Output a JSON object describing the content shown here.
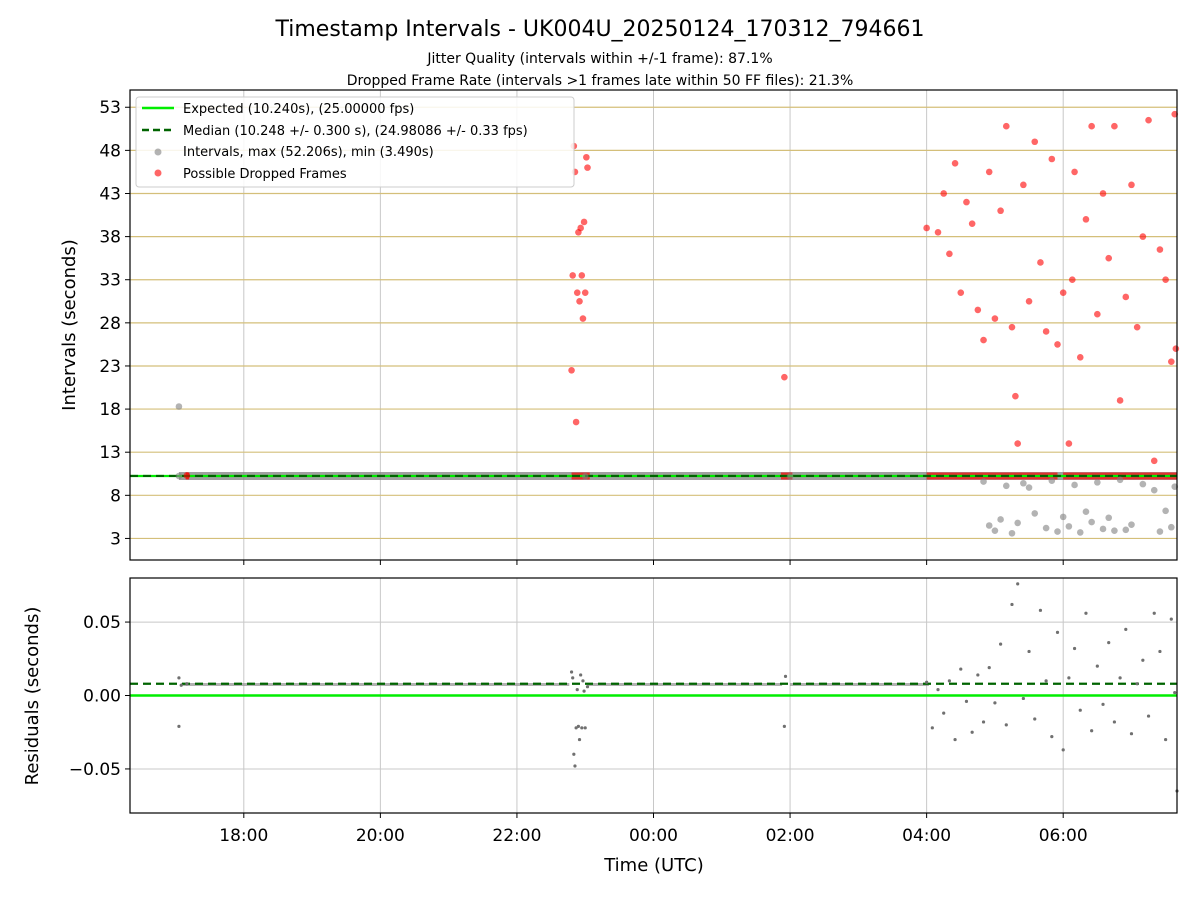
{
  "chart_data": [
    {
      "type": "scatter",
      "title": "Timestamp Intervals - UK004U_20250124_170312_794661",
      "subtitle_lines": [
        "Jitter Quality (intervals within +/-1 frame): 87.1%",
        "Dropped Frame Rate (intervals >1 frames late within 50 FF files): 21.3%"
      ],
      "ylabel": "Intervals (seconds)",
      "xlim": [
        "16:20",
        "07:40"
      ],
      "ylim": [
        0.5,
        55
      ],
      "y_ticks": [
        3,
        8,
        13,
        18,
        23,
        28,
        33,
        38,
        43,
        48,
        53
      ],
      "x_ticks": [
        "18:00",
        "20:00",
        "22:00",
        "00:00",
        "02:00",
        "04:00",
        "06:00"
      ],
      "grid": true,
      "legend_position": "top-left",
      "legend": [
        "Expected (10.240s), (25.00000 fps)",
        "Median (10.248 +/- 0.300 s), (24.98086 +/- 0.33 fps)",
        "Intervals, max (52.206s), min (3.490s)",
        "Possible Dropped Frames"
      ],
      "expected_value": 10.24,
      "median_value": 10.248,
      "series": [
        {
          "name": "Intervals, max (52.206s), min (3.490s)",
          "color": "#808080",
          "points": [
            [
              "17:03",
              18.3
            ],
            [
              "17:03",
              10.24
            ],
            [
              "23:00",
              10.2
            ],
            [
              "02:00",
              10.2
            ],
            [
              "04:55",
              4.5
            ],
            [
              "05:00",
              3.9
            ],
            [
              "05:05",
              5.2
            ],
            [
              "05:10",
              9.1
            ],
            [
              "05:15",
              3.6
            ],
            [
              "05:20",
              4.8
            ],
            [
              "05:25",
              9.4
            ],
            [
              "05:35",
              5.9
            ],
            [
              "05:45",
              4.2
            ],
            [
              "05:50",
              9.7
            ],
            [
              "05:55",
              3.8
            ],
            [
              "06:00",
              5.5
            ],
            [
              "06:05",
              4.4
            ],
            [
              "06:10",
              9.2
            ],
            [
              "06:15",
              3.7
            ],
            [
              "06:20",
              6.1
            ],
            [
              "06:25",
              4.9
            ],
            [
              "06:30",
              9.5
            ],
            [
              "06:35",
              4.1
            ],
            [
              "06:40",
              5.4
            ],
            [
              "06:45",
              3.9
            ],
            [
              "06:50",
              9.8
            ],
            [
              "07:00",
              4.6
            ],
            [
              "07:10",
              9.3
            ],
            [
              "07:20",
              8.6
            ],
            [
              "07:25",
              3.8
            ],
            [
              "07:30",
              6.2
            ],
            [
              "07:35",
              4.3
            ],
            [
              "07:38",
              9.0
            ],
            [
              "04:50",
              9.6
            ],
            [
              "05:30",
              8.9
            ],
            [
              "06:55",
              4.0
            ]
          ]
        },
        {
          "name": "Possible Dropped Frames",
          "color": "#ff0000",
          "points": [
            [
              "17:10",
              10.3
            ],
            [
              "22:48",
              22.5
            ],
            [
              "22:49",
              33.5
            ],
            [
              "22:50",
              48.5
            ],
            [
              "22:51",
              45.5
            ],
            [
              "22:52",
              16.5
            ],
            [
              "22:53",
              31.5
            ],
            [
              "22:54",
              38.5
            ],
            [
              "22:55",
              30.5
            ],
            [
              "22:56",
              39.0
            ],
            [
              "22:57",
              33.5
            ],
            [
              "22:58",
              28.5
            ],
            [
              "22:59",
              39.7
            ],
            [
              "23:00",
              31.5
            ],
            [
              "23:01",
              47.2
            ],
            [
              "23:02",
              46.0
            ],
            [
              "01:55",
              21.7
            ],
            [
              "04:00",
              39.0
            ],
            [
              "04:10",
              38.5
            ],
            [
              "04:15",
              43.0
            ],
            [
              "04:20",
              36.0
            ],
            [
              "04:25",
              46.5
            ],
            [
              "04:30",
              31.5
            ],
            [
              "04:35",
              42.0
            ],
            [
              "04:40",
              39.5
            ],
            [
              "04:45",
              29.5
            ],
            [
              "04:50",
              26.0
            ],
            [
              "04:55",
              45.5
            ],
            [
              "05:00",
              28.5
            ],
            [
              "05:05",
              41.0
            ],
            [
              "05:10",
              50.8
            ],
            [
              "05:15",
              27.5
            ],
            [
              "05:18",
              19.5
            ],
            [
              "05:20",
              14.0
            ],
            [
              "05:25",
              44.0
            ],
            [
              "05:30",
              30.5
            ],
            [
              "05:35",
              49.0
            ],
            [
              "05:40",
              35.0
            ],
            [
              "05:45",
              27.0
            ],
            [
              "05:50",
              47.0
            ],
            [
              "05:55",
              25.5
            ],
            [
              "06:00",
              31.5
            ],
            [
              "06:05",
              14.0
            ],
            [
              "06:08",
              33.0
            ],
            [
              "06:10",
              45.5
            ],
            [
              "06:15",
              24.0
            ],
            [
              "06:20",
              40.0
            ],
            [
              "06:25",
              50.8
            ],
            [
              "06:30",
              29.0
            ],
            [
              "06:35",
              43.0
            ],
            [
              "06:40",
              35.5
            ],
            [
              "06:45",
              50.8
            ],
            [
              "06:50",
              19.0
            ],
            [
              "06:55",
              31.0
            ],
            [
              "07:00",
              44.0
            ],
            [
              "07:05",
              27.5
            ],
            [
              "07:10",
              38.0
            ],
            [
              "07:15",
              51.5
            ],
            [
              "07:20",
              12.0
            ],
            [
              "07:25",
              36.5
            ],
            [
              "07:30",
              33.0
            ],
            [
              "07:35",
              23.5
            ],
            [
              "07:38",
              52.2
            ],
            [
              "07:39",
              25.0
            ]
          ]
        }
      ]
    },
    {
      "type": "scatter",
      "xlabel": "Time (UTC)",
      "ylabel": "Residuals (seconds)",
      "xlim": [
        "16:20",
        "07:40"
      ],
      "ylim": [
        -0.08,
        0.08
      ],
      "y_ticks": [
        -0.05,
        0.0,
        0.05
      ],
      "y_tick_labels": [
        "−0.05",
        "0.00",
        "0.05"
      ],
      "x_ticks": [
        "18:00",
        "20:00",
        "22:00",
        "00:00",
        "02:00",
        "04:00",
        "06:00"
      ],
      "grid": true,
      "expected_value": 0.0,
      "median_value": 0.008,
      "series": [
        {
          "name": "Residuals",
          "color": "#707070",
          "points": [
            [
              "17:03",
              0.012
            ],
            [
              "17:03",
              -0.021
            ],
            [
              "17:05",
              0.007
            ],
            [
              "17:10",
              0.008
            ],
            [
              "22:48",
              0.016
            ],
            [
              "22:49",
              0.012
            ],
            [
              "22:50",
              -0.04
            ],
            [
              "22:51",
              -0.048
            ],
            [
              "22:52",
              -0.022
            ],
            [
              "22:53",
              0.004
            ],
            [
              "22:54",
              -0.021
            ],
            [
              "22:55",
              -0.03
            ],
            [
              "22:56",
              0.014
            ],
            [
              "22:57",
              -0.022
            ],
            [
              "22:58",
              0.01
            ],
            [
              "22:59",
              0.003
            ],
            [
              "23:00",
              -0.022
            ],
            [
              "23:02",
              0.006
            ],
            [
              "01:55",
              -0.021
            ],
            [
              "01:56",
              0.013
            ],
            [
              "04:00",
              0.009
            ],
            [
              "04:05",
              -0.022
            ],
            [
              "04:10",
              0.004
            ],
            [
              "04:15",
              -0.012
            ],
            [
              "04:20",
              0.01
            ],
            [
              "04:25",
              -0.03
            ],
            [
              "04:30",
              0.018
            ],
            [
              "04:35",
              -0.004
            ],
            [
              "04:40",
              -0.025
            ],
            [
              "04:45",
              0.014
            ],
            [
              "04:50",
              -0.018
            ],
            [
              "04:55",
              0.019
            ],
            [
              "05:00",
              -0.005
            ],
            [
              "05:05",
              0.035
            ],
            [
              "05:10",
              -0.02
            ],
            [
              "05:15",
              0.062
            ],
            [
              "05:20",
              0.076
            ],
            [
              "05:25",
              -0.002
            ],
            [
              "05:30",
              0.03
            ],
            [
              "05:35",
              -0.016
            ],
            [
              "05:40",
              0.058
            ],
            [
              "05:45",
              0.01
            ],
            [
              "05:50",
              -0.028
            ],
            [
              "05:55",
              0.043
            ],
            [
              "06:00",
              -0.037
            ],
            [
              "06:05",
              0.012
            ],
            [
              "06:10",
              0.032
            ],
            [
              "06:15",
              -0.01
            ],
            [
              "06:20",
              0.056
            ],
            [
              "06:25",
              -0.024
            ],
            [
              "06:30",
              0.02
            ],
            [
              "06:35",
              -0.006
            ],
            [
              "06:40",
              0.036
            ],
            [
              "06:45",
              -0.018
            ],
            [
              "06:50",
              0.012
            ],
            [
              "06:55",
              0.045
            ],
            [
              "07:00",
              -0.026
            ],
            [
              "07:05",
              0.008
            ],
            [
              "07:10",
              0.024
            ],
            [
              "07:15",
              -0.014
            ],
            [
              "07:20",
              0.056
            ],
            [
              "07:25",
              0.03
            ],
            [
              "07:30",
              -0.03
            ],
            [
              "07:35",
              0.052
            ],
            [
              "07:38",
              0.002
            ],
            [
              "07:40",
              -0.065
            ]
          ]
        }
      ]
    }
  ],
  "colors": {
    "expected": "#00ee00",
    "median": "#006400",
    "intervals": "#808080",
    "dropped": "#ff0000",
    "hgrid_top": "#d4bf7a",
    "grid": "#c8c8c8"
  }
}
